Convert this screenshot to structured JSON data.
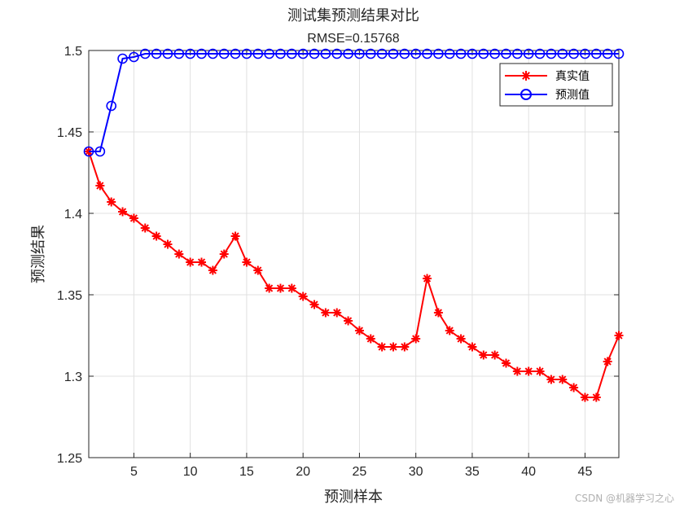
{
  "chart_data": {
    "type": "line",
    "title": "测试集预测结果对比",
    "subtitle": "RMSE=0.15768",
    "xlabel": "预测样本",
    "ylabel": "预测结果",
    "xlim": [
      1,
      48
    ],
    "ylim": [
      1.25,
      1.5
    ],
    "xticks": [
      5,
      10,
      15,
      20,
      25,
      30,
      35,
      40,
      45
    ],
    "yticks": [
      1.25,
      1.3,
      1.35,
      1.4,
      1.45,
      1.5
    ],
    "ytick_labels": [
      "1.25",
      "1.3",
      "1.35",
      "1.4",
      "1.45",
      "1.5"
    ],
    "grid": true,
    "legend_position": "top-right",
    "x": [
      1,
      2,
      3,
      4,
      5,
      6,
      7,
      8,
      9,
      10,
      11,
      12,
      13,
      14,
      15,
      16,
      17,
      18,
      19,
      20,
      21,
      22,
      23,
      24,
      25,
      26,
      27,
      28,
      29,
      30,
      31,
      32,
      33,
      34,
      35,
      36,
      37,
      38,
      39,
      40,
      41,
      42,
      43,
      44,
      45,
      46,
      47,
      48
    ],
    "series": [
      {
        "name": "真实值",
        "color": "#ff0000",
        "marker": "asterisk",
        "values": [
          1.438,
          1.417,
          1.407,
          1.401,
          1.397,
          1.391,
          1.386,
          1.381,
          1.375,
          1.37,
          1.37,
          1.365,
          1.375,
          1.386,
          1.37,
          1.365,
          1.354,
          1.354,
          1.354,
          1.349,
          1.344,
          1.339,
          1.339,
          1.334,
          1.328,
          1.323,
          1.318,
          1.318,
          1.318,
          1.323,
          1.36,
          1.339,
          1.328,
          1.323,
          1.318,
          1.313,
          1.313,
          1.308,
          1.303,
          1.303,
          1.303,
          1.298,
          1.298,
          1.293,
          1.287,
          1.287,
          1.309,
          1.325
        ]
      },
      {
        "name": "预测值",
        "color": "#0000ff",
        "marker": "circle",
        "values": [
          1.438,
          1.438,
          1.466,
          1.495,
          1.496,
          1.498,
          1.498,
          1.498,
          1.498,
          1.498,
          1.498,
          1.498,
          1.498,
          1.498,
          1.498,
          1.498,
          1.498,
          1.498,
          1.498,
          1.498,
          1.498,
          1.498,
          1.498,
          1.498,
          1.498,
          1.498,
          1.498,
          1.498,
          1.498,
          1.498,
          1.498,
          1.498,
          1.498,
          1.498,
          1.498,
          1.498,
          1.498,
          1.498,
          1.498,
          1.498,
          1.498,
          1.498,
          1.498,
          1.498,
          1.498,
          1.498,
          1.498,
          1.498
        ]
      }
    ]
  },
  "watermark": "CSDN @机器学习之心"
}
